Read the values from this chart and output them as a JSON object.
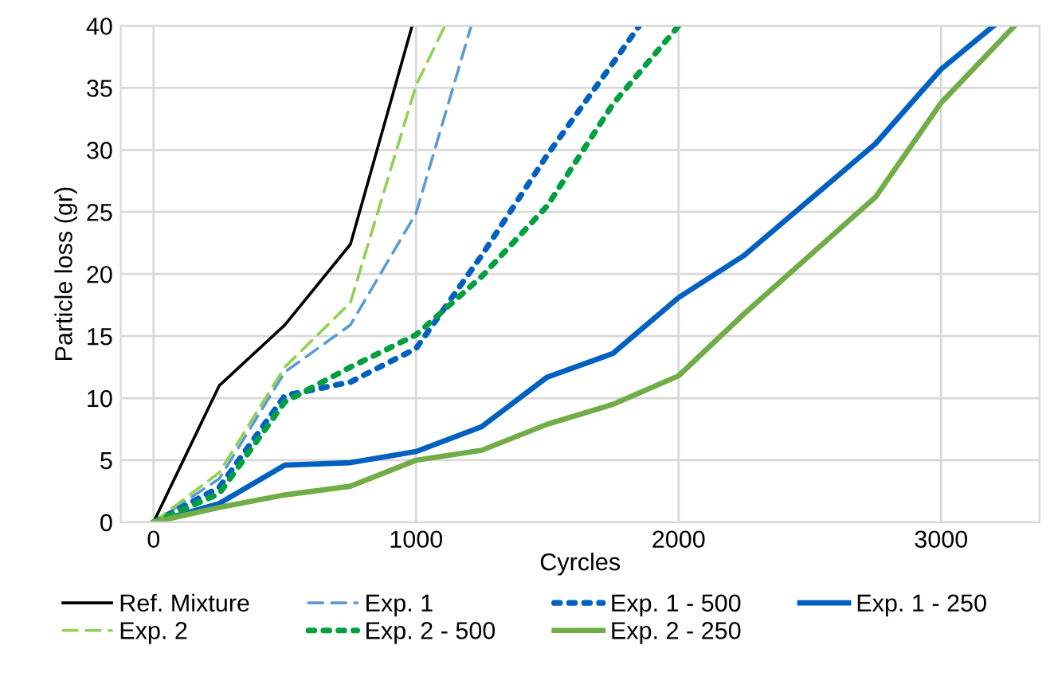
{
  "chart_data": {
    "type": "line",
    "xlabel": "Cyrcles",
    "ylabel": "Particle loss (gr)",
    "xlim": [
      -125,
      3375
    ],
    "xticks": [
      0,
      1000,
      2000,
      3000
    ],
    "ylim": [
      0,
      40
    ],
    "yticks": [
      0,
      5,
      10,
      15,
      20,
      25,
      30,
      35,
      40
    ],
    "grid": true,
    "legend": "bottom",
    "marker": "none",
    "series": [
      {
        "name": "Ref. Mixture",
        "color": "#000000",
        "line_style": "solid",
        "x": [
          0,
          250,
          500,
          750,
          985
        ],
        "values": [
          0,
          11.0,
          15.9,
          22.4,
          40
        ]
      },
      {
        "name": "Exp. 1",
        "color": "#5b9bd5",
        "line_style": "dashed",
        "x": [
          0,
          250,
          500,
          750,
          1000,
          1210
        ],
        "values": [
          0,
          3.5,
          12.1,
          15.9,
          24.9,
          40
        ]
      },
      {
        "name": "Exp. 1 - 500",
        "color": "#0060c0",
        "line_style": "dotted",
        "x": [
          0,
          250,
          500,
          750,
          1000,
          1250,
          1500,
          1750,
          1850
        ],
        "values": [
          0,
          2.8,
          10.2,
          11.3,
          14.0,
          21.5,
          29.6,
          37.0,
          40
        ]
      },
      {
        "name": "Exp. 1 - 250",
        "color": "#0060c0",
        "line_style": "solid",
        "x": [
          0,
          250,
          500,
          750,
          1000,
          1250,
          1500,
          1750,
          2000,
          2250,
          2500,
          2750,
          3000,
          3200
        ],
        "values": [
          0,
          1.5,
          4.6,
          4.8,
          5.7,
          7.7,
          11.7,
          13.6,
          18.1,
          21.5,
          26,
          30.5,
          36.5,
          40
        ]
      },
      {
        "name": "Exp. 2",
        "color": "#92d050",
        "line_style": "dashed",
        "x": [
          0,
          250,
          500,
          750,
          1000,
          1110
        ],
        "values": [
          0,
          4.0,
          12.5,
          17.7,
          35.2,
          40
        ]
      },
      {
        "name": "Exp. 2 - 500",
        "color": "#00a040",
        "line_style": "dotted",
        "x": [
          0,
          250,
          500,
          750,
          1000,
          1250,
          1500,
          1750,
          2000
        ],
        "values": [
          0,
          2.3,
          9.7,
          12.5,
          15.1,
          19.8,
          25.5,
          33.7,
          40
        ]
      },
      {
        "name": "Exp. 2 - 250",
        "color": "#70ad47",
        "line_style": "solid",
        "x": [
          0,
          250,
          500,
          750,
          1000,
          1250,
          1500,
          1750,
          2000,
          2250,
          2500,
          2750,
          3000,
          3280
        ],
        "values": [
          0,
          1.2,
          2.2,
          2.9,
          5.0,
          5.8,
          7.9,
          9.5,
          11.8,
          16.8,
          21.5,
          26.2,
          33.8,
          40
        ]
      }
    ]
  }
}
